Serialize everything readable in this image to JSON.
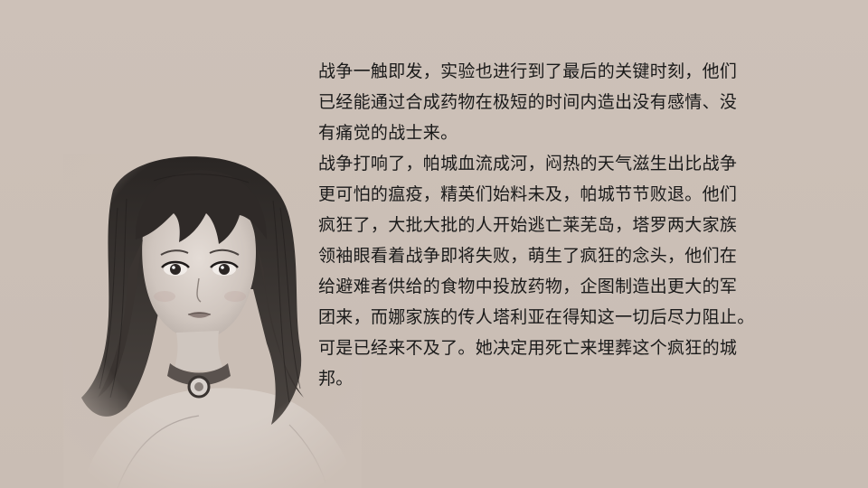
{
  "slide": {
    "paragraphs": [
      {
        "lines": [
          "战争一触即发，实验也进行到了最后的关键时刻，他们",
          "已经能通过合成药物在极短的时间内造出没有感情、没",
          "有痛觉的战士来。"
        ]
      },
      {
        "lines": [
          "战争打响了，帕城血流成河，闷热的天气滋生出比战争",
          "更可怕的瘟疫，精英们始料未及，帕城节节败退。他们",
          "疯狂了，大批大批的人开始逃亡莱芜岛，塔罗两大家族",
          "领袖眼看着战争即将失败，萌生了疯狂的念头，他们在",
          "给避难者供给的食物中投放药物，企图制造出更大的军",
          "团来，而娜家族的传人塔利亚在得知这一切后尽力阻止。",
          "可是已经来不及了。她决定用死亡来埋葬这个疯狂的城",
          "邦。"
        ]
      }
    ]
  }
}
